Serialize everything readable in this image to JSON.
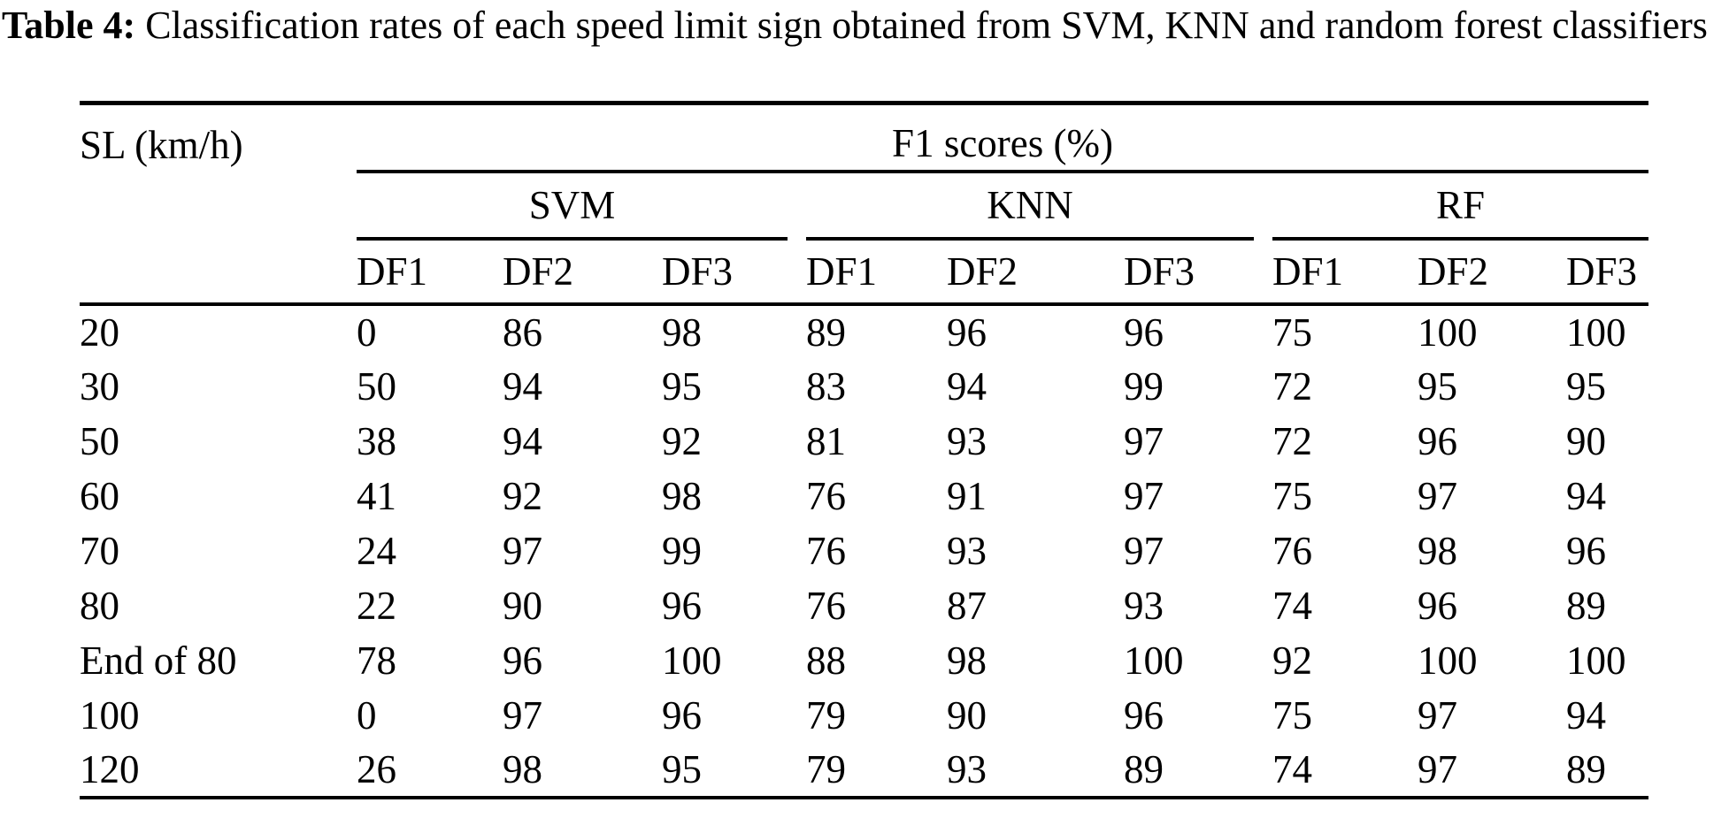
{
  "caption": {
    "label": "Table 4:",
    "text": "Classification rates of each speed limit sign obtained from SVM, KNN and random forest classifiers"
  },
  "table": {
    "corner_header": "SL (km/h)",
    "f1_header": "F1 scores (%)",
    "groups": [
      "SVM",
      "KNN",
      "RF"
    ],
    "subheaders": [
      "DF1",
      "DF2",
      "DF3",
      "DF1",
      "DF2",
      "DF3",
      "DF1",
      "DF2",
      "DF3"
    ],
    "rows": [
      {
        "label": "20",
        "values": [
          0,
          86,
          98,
          89,
          96,
          96,
          75,
          100,
          100
        ]
      },
      {
        "label": "30",
        "values": [
          50,
          94,
          95,
          83,
          94,
          99,
          72,
          95,
          95
        ]
      },
      {
        "label": "50",
        "values": [
          38,
          94,
          92,
          81,
          93,
          97,
          72,
          96,
          90
        ]
      },
      {
        "label": "60",
        "values": [
          41,
          92,
          98,
          76,
          91,
          97,
          75,
          97,
          94
        ]
      },
      {
        "label": "70",
        "values": [
          24,
          97,
          99,
          76,
          93,
          97,
          76,
          98,
          96
        ]
      },
      {
        "label": "80",
        "values": [
          22,
          90,
          96,
          76,
          87,
          93,
          74,
          96,
          89
        ]
      },
      {
        "label": "End of 80",
        "values": [
          78,
          96,
          100,
          88,
          98,
          100,
          92,
          100,
          100
        ]
      },
      {
        "label": "100",
        "values": [
          0,
          97,
          96,
          79,
          90,
          96,
          75,
          97,
          94
        ]
      },
      {
        "label": "120",
        "values": [
          26,
          98,
          95,
          79,
          93,
          89,
          74,
          97,
          89
        ]
      }
    ]
  }
}
